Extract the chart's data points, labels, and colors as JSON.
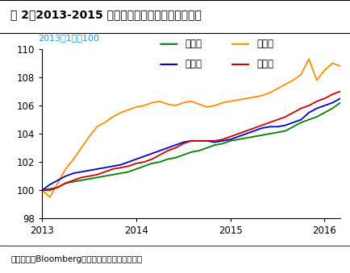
{
  "title": "图 2：2013-2015 年非农部门各行业薪资增长趋势",
  "subtitle_label": "2013年1月＝100",
  "source_label": "资料来源：Bloomberg、国信证券经济研究所整理",
  "ylim": [
    98,
    110
  ],
  "yticks": [
    98,
    100,
    102,
    104,
    106,
    108,
    110
  ],
  "xtick_labels": [
    "2013",
    "2014",
    "2015",
    "2016"
  ],
  "xtick_positions": [
    0,
    12,
    24,
    36
  ],
  "legend_row1": [
    "建筑业",
    "采矿业"
  ],
  "legend_row2": [
    "制造业",
    "服务业"
  ],
  "colors": {
    "construction": "#008000",
    "mining": "#ff8c00",
    "manufacturing": "#0000cd",
    "services": "#cc0000"
  },
  "construction": [
    100.0,
    100.1,
    100.2,
    100.5,
    100.6,
    100.7,
    100.8,
    100.9,
    101.0,
    101.1,
    101.2,
    101.3,
    101.5,
    101.7,
    101.9,
    102.0,
    102.2,
    102.3,
    102.5,
    102.7,
    102.8,
    103.0,
    103.2,
    103.3,
    103.5,
    103.6,
    103.7,
    103.8,
    103.9,
    104.0,
    104.1,
    104.2,
    104.5,
    104.8,
    105.0,
    105.2,
    105.5,
    105.8,
    106.2
  ],
  "mining": [
    100.0,
    99.5,
    100.5,
    101.5,
    102.2,
    103.0,
    103.8,
    104.5,
    104.8,
    105.2,
    105.5,
    105.7,
    105.9,
    106.0,
    106.2,
    106.3,
    106.1,
    106.0,
    106.2,
    106.3,
    106.1,
    105.9,
    106.0,
    106.2,
    106.3,
    106.4,
    106.5,
    106.6,
    106.7,
    106.9,
    107.2,
    107.5,
    107.8,
    108.2,
    109.3,
    107.8,
    108.5,
    109.0,
    108.8
  ],
  "manufacturing": [
    100.0,
    100.4,
    100.7,
    101.0,
    101.2,
    101.3,
    101.4,
    101.5,
    101.6,
    101.7,
    101.8,
    102.0,
    102.2,
    102.4,
    102.6,
    102.8,
    103.0,
    103.2,
    103.4,
    103.5,
    103.5,
    103.5,
    103.4,
    103.5,
    103.6,
    103.8,
    104.0,
    104.2,
    104.4,
    104.5,
    104.5,
    104.6,
    104.8,
    105.0,
    105.5,
    105.8,
    106.0,
    106.2,
    106.5
  ],
  "services": [
    100.0,
    100.0,
    100.2,
    100.5,
    100.7,
    100.9,
    101.0,
    101.1,
    101.3,
    101.5,
    101.6,
    101.7,
    101.9,
    102.0,
    102.2,
    102.5,
    102.8,
    103.0,
    103.3,
    103.5,
    103.5,
    103.5,
    103.5,
    103.6,
    103.8,
    104.0,
    104.2,
    104.4,
    104.6,
    104.8,
    105.0,
    105.2,
    105.5,
    105.8,
    106.0,
    106.3,
    106.5,
    106.8,
    107.0
  ]
}
